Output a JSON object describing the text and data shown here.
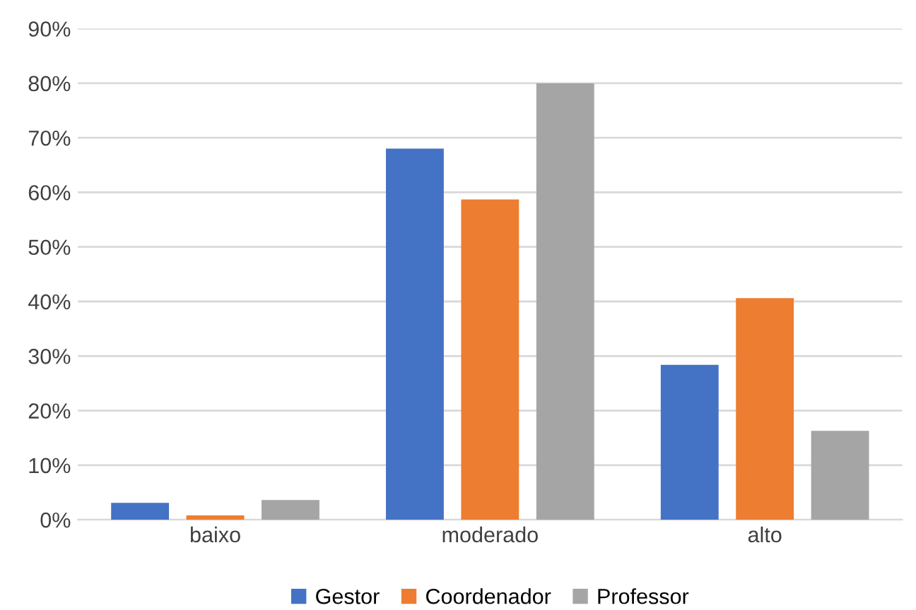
{
  "chart_data": {
    "type": "bar",
    "categories": [
      "baixo",
      "moderado",
      "alto"
    ],
    "series": [
      {
        "name": "Gestor",
        "color": "#4472c4",
        "values": [
          3.1,
          68,
          28.4
        ]
      },
      {
        "name": "Coordenador",
        "color": "#ed7d31",
        "values": [
          0.8,
          58.7,
          40.6
        ]
      },
      {
        "name": "Professor",
        "color": "#a5a5a5",
        "values": [
          3.6,
          80,
          16.3
        ]
      }
    ],
    "ylim": [
      0,
      90
    ],
    "yticks": [
      {
        "value": 0,
        "label": "0%"
      },
      {
        "value": 10,
        "label": "10%"
      },
      {
        "value": 20,
        "label": "20%"
      },
      {
        "value": 30,
        "label": "30%"
      },
      {
        "value": 40,
        "label": "40%"
      },
      {
        "value": 50,
        "label": "50%"
      },
      {
        "value": 60,
        "label": "60%"
      },
      {
        "value": 70,
        "label": "70%"
      },
      {
        "value": 80,
        "label": "80%"
      },
      {
        "value": 90,
        "label": "90%"
      }
    ],
    "grid": "y",
    "legend": "bottom"
  }
}
